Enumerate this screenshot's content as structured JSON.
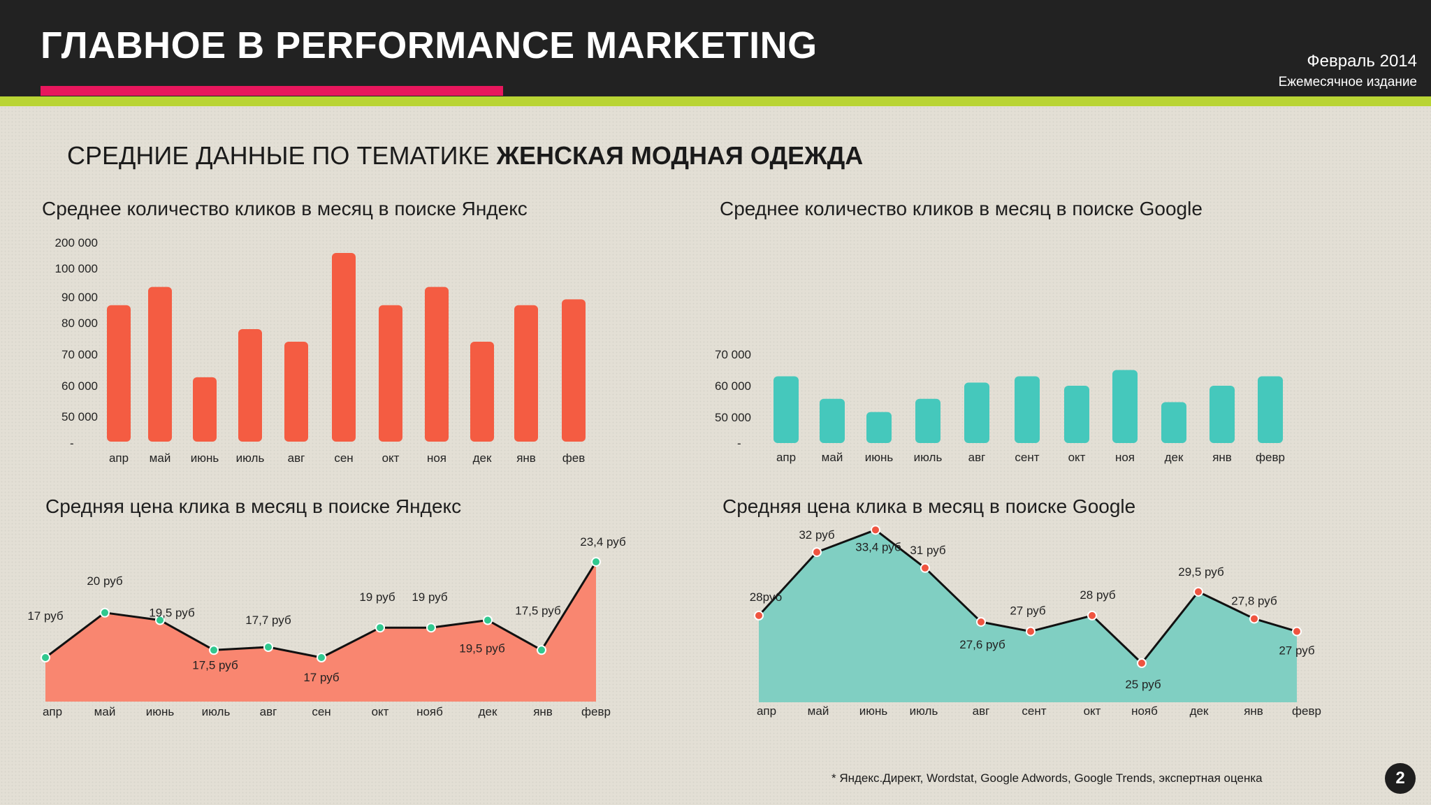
{
  "header": {
    "title": "ГЛАВНОЕ В PERFORMANCE MARKETING",
    "issue_date": "Февраль 2014",
    "issue_type": "Ежемесячное издание"
  },
  "section": {
    "title_regular": "СРЕДНИЕ ДАННЫЕ ПО ТЕМАТИКЕ ",
    "title_bold": "ЖЕНСКАЯ МОДНАЯ ОДЕЖДА"
  },
  "colors": {
    "yandex": "#f45c42",
    "yandex_area": "#f98670",
    "google": "#45c8bc",
    "google_area": "#80cfc2",
    "point_green": "#31c88f",
    "point_red": "#ef5440",
    "header_bg": "#222222",
    "accent_pink": "#e8175d",
    "accent_lime": "#b9d434"
  },
  "chart_data": [
    {
      "id": "yandex_clicks",
      "type": "bar",
      "title": "Среднее количество кликов в месяц в поиске Яндекс",
      "categories": [
        "апр",
        "май",
        "июнь",
        "июль",
        "авг",
        "сен",
        "окт",
        "ноя",
        "дек",
        "янв",
        "фев"
      ],
      "values": [
        86000,
        92000,
        63000,
        78000,
        74000,
        115000,
        86000,
        92000,
        74000,
        86000,
        88000
      ],
      "y_tick_labels": [
        "-",
        "50 000",
        "60 000",
        "70 000",
        "80 000",
        "90 000",
        "100 000",
        "200 000"
      ],
      "y_tick_values": [
        0,
        50000,
        60000,
        70000,
        80000,
        90000,
        100000,
        200000
      ],
      "axis_scale": "non-linear",
      "grid": false
    },
    {
      "id": "google_clicks",
      "type": "bar",
      "title": "Среднее количество кликов в месяц в поиске Google",
      "categories": [
        "апр",
        "май",
        "июнь",
        "июль",
        "авг",
        "сент",
        "окт",
        "ноя",
        "дек",
        "янв",
        "февр"
      ],
      "values": [
        63000,
        56000,
        52000,
        56000,
        61000,
        63000,
        60000,
        65000,
        55000,
        60000,
        63000
      ],
      "y_tick_labels": [
        "-",
        "50 000",
        "60 000",
        "70 000"
      ],
      "y_tick_values": [
        0,
        50000,
        60000,
        70000
      ],
      "axis_scale": "non-linear",
      "grid": false
    },
    {
      "id": "yandex_cpc",
      "type": "area",
      "title": "Средняя цена клика в месяц в поиске Яндекс",
      "categories": [
        "апр",
        "май",
        "июнь",
        "июль",
        "авг",
        "сен",
        "окт",
        "нояб",
        "дек",
        "янв",
        "февр"
      ],
      "values": [
        17,
        20,
        19.5,
        17.5,
        17.7,
        17,
        19,
        19,
        19.5,
        17.5,
        23.4
      ],
      "data_labels": [
        "17 руб",
        "20 руб",
        "19,5 руб",
        "17,5 руб",
        "17,7 руб",
        "17 руб",
        "19 руб",
        "19 руб",
        "19,5 руб",
        "17,5 руб",
        "23,4 руб"
      ],
      "grid": false
    },
    {
      "id": "google_cpc",
      "type": "area",
      "title": "Средняя цена клика в месяц в поиске Google",
      "categories": [
        "апр",
        "май",
        "июнь",
        "июль",
        "авг",
        "сент",
        "окт",
        "нояб",
        "дек",
        "янв",
        "февр"
      ],
      "values": [
        28,
        32,
        33.4,
        31,
        27.6,
        27,
        28,
        25,
        29.5,
        27.8,
        27
      ],
      "data_labels": [
        "28руб",
        "32 руб",
        "33,4 руб",
        "31 руб",
        "27,6 руб",
        "27 руб",
        "28 руб",
        "25 руб",
        "29,5 руб",
        "27,8 руб",
        "27 руб"
      ],
      "grid": false
    }
  ],
  "footnote": "* Яндекс.Директ, Wordstat, Google Adwords, Google Trends, экспертная оценка",
  "page_number": "2"
}
